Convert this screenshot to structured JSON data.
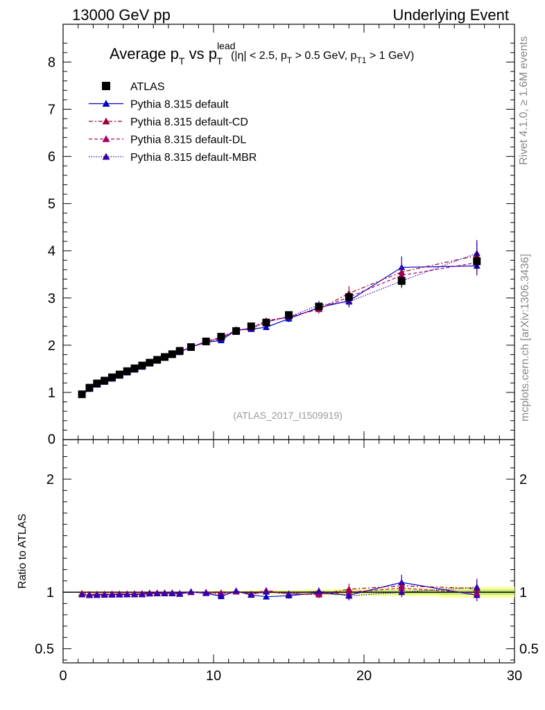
{
  "header": {
    "left": "13000 GeV pp",
    "right": "Underlying Event"
  },
  "side_labels": {
    "rivet": "Rivet 4.1.0, ≥ 1.6M events",
    "mcplots": "mcplots.cern.ch [arXiv:1306.3436]"
  },
  "plot_title": {
    "main": "Average p",
    "sub_T": "T",
    "vs": " vs p",
    "sup_lead": "lead",
    "sub_T2": "T",
    "cuts_a": "(|η| < 2.5, p",
    "cuts_sub_T": "T",
    "cuts_b": " > 0.5 GeV, p",
    "cuts_sub_T1": "T1",
    "cuts_c": " > 1 GeV)"
  },
  "analysis_id": "(ATLAS_2017_I1509919)",
  "ratio_ylabel": "Ratio to ATLAS",
  "colors": {
    "atlas": "#000000",
    "default": "#0000cc",
    "default_cd": "#990033",
    "default_dl": "#aa0066",
    "default_mbr": "#3300aa",
    "band": "#ffff99",
    "band_inner": "#99dd66"
  },
  "chart_data": {
    "type": "scatter",
    "title": "Average pT vs pT lead (|η| < 2.5, pT > 0.5 GeV, pT1 > 1 GeV)",
    "xlabel": "",
    "ylabel": "",
    "xlim": [
      0,
      30
    ],
    "ylim": [
      0,
      8.8
    ],
    "ratio_ylim": [
      0.375,
      2.35
    ],
    "x_ticks": [
      0,
      10,
      20,
      30
    ],
    "y_ticks": [
      1,
      2,
      3,
      4,
      5,
      6,
      7,
      8
    ],
    "ratio_ticks": [
      0.5,
      1,
      2
    ],
    "x": [
      1.25,
      1.75,
      2.25,
      2.75,
      3.25,
      3.75,
      4.25,
      4.75,
      5.25,
      5.75,
      6.25,
      6.75,
      7.25,
      7.75,
      8.5,
      9.5,
      10.5,
      11.5,
      12.5,
      13.5,
      15,
      17,
      19,
      22.5,
      27.5
    ],
    "series": [
      {
        "name": "ATLAS",
        "style": "data",
        "values": [
          0.96,
          1.1,
          1.19,
          1.25,
          1.32,
          1.38,
          1.45,
          1.51,
          1.57,
          1.63,
          1.69,
          1.75,
          1.81,
          1.88,
          1.96,
          2.08,
          2.18,
          2.3,
          2.4,
          2.48,
          2.64,
          2.82,
          3.02,
          3.36,
          3.78
        ],
        "errors": [
          0.01,
          0.01,
          0.01,
          0.01,
          0.01,
          0.01,
          0.01,
          0.01,
          0.01,
          0.01,
          0.01,
          0.01,
          0.01,
          0.01,
          0.02,
          0.02,
          0.03,
          0.03,
          0.04,
          0.05,
          0.05,
          0.07,
          0.09,
          0.12,
          0.18
        ]
      },
      {
        "name": "Pythia 8.315 default",
        "style": "solid",
        "values": [
          0.94,
          1.07,
          1.16,
          1.22,
          1.29,
          1.35,
          1.42,
          1.48,
          1.54,
          1.61,
          1.67,
          1.73,
          1.79,
          1.85,
          1.96,
          2.06,
          2.1,
          2.32,
          2.34,
          2.38,
          2.56,
          2.8,
          2.94,
          3.65,
          3.68
        ],
        "errors": [
          0.01,
          0.01,
          0.01,
          0.01,
          0.01,
          0.01,
          0.01,
          0.01,
          0.01,
          0.01,
          0.01,
          0.01,
          0.02,
          0.02,
          0.02,
          0.03,
          0.04,
          0.05,
          0.05,
          0.06,
          0.07,
          0.09,
          0.12,
          0.23,
          0.2
        ]
      },
      {
        "name": "Pythia 8.315 default-CD",
        "style": "dashdot",
        "values": [
          0.95,
          1.08,
          1.17,
          1.23,
          1.3,
          1.36,
          1.43,
          1.49,
          1.55,
          1.62,
          1.68,
          1.74,
          1.8,
          1.86,
          1.96,
          2.07,
          2.16,
          2.31,
          2.36,
          2.5,
          2.6,
          2.76,
          3.1,
          3.55,
          3.9
        ],
        "errors": [
          0.01,
          0.01,
          0.01,
          0.01,
          0.01,
          0.01,
          0.01,
          0.01,
          0.01,
          0.01,
          0.01,
          0.01,
          0.02,
          0.02,
          0.02,
          0.03,
          0.04,
          0.05,
          0.05,
          0.06,
          0.07,
          0.09,
          0.15,
          0.22,
          0.28
        ]
      },
      {
        "name": "Pythia 8.315 default-DL",
        "style": "dashed",
        "values": [
          0.95,
          1.08,
          1.17,
          1.23,
          1.3,
          1.36,
          1.43,
          1.49,
          1.55,
          1.62,
          1.68,
          1.74,
          1.8,
          1.86,
          1.96,
          2.08,
          2.17,
          2.31,
          2.36,
          2.52,
          2.6,
          2.77,
          3.02,
          3.48,
          3.75
        ],
        "errors": [
          0.01,
          0.01,
          0.01,
          0.01,
          0.01,
          0.01,
          0.01,
          0.01,
          0.01,
          0.01,
          0.01,
          0.01,
          0.02,
          0.02,
          0.02,
          0.03,
          0.04,
          0.05,
          0.05,
          0.06,
          0.07,
          0.09,
          0.14,
          0.2,
          0.25
        ]
      },
      {
        "name": "Pythia 8.315 default-MBR",
        "style": "dotted",
        "values": [
          0.94,
          1.07,
          1.16,
          1.22,
          1.29,
          1.35,
          1.42,
          1.48,
          1.54,
          1.61,
          1.67,
          1.73,
          1.79,
          1.86,
          1.97,
          2.07,
          2.13,
          2.33,
          2.35,
          2.49,
          2.6,
          2.85,
          2.92,
          3.36,
          3.95
        ],
        "errors": [
          0.01,
          0.01,
          0.01,
          0.01,
          0.01,
          0.01,
          0.01,
          0.01,
          0.01,
          0.01,
          0.01,
          0.01,
          0.02,
          0.02,
          0.02,
          0.03,
          0.04,
          0.05,
          0.05,
          0.06,
          0.07,
          0.09,
          0.12,
          0.15,
          0.28
        ]
      }
    ]
  }
}
